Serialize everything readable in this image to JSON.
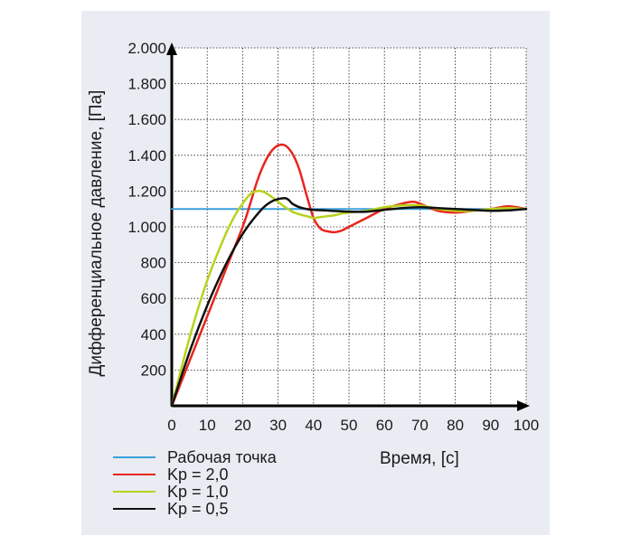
{
  "chart_data": {
    "type": "line",
    "title": "",
    "xlabel": "Время, [c]",
    "ylabel": "Дифференциальное давление, [Па]",
    "xlim": [
      0,
      100
    ],
    "ylim": [
      0,
      2000
    ],
    "x_ticks": [
      0,
      10,
      20,
      30,
      40,
      50,
      60,
      70,
      80,
      90,
      100
    ],
    "x_tick_labels": [
      "0",
      "10",
      "20",
      "30",
      "40",
      "50",
      "60",
      "70",
      "80",
      "90",
      "100"
    ],
    "y_ticks": [
      200,
      400,
      600,
      800,
      1000,
      1200,
      1400,
      1600,
      1800,
      2000
    ],
    "y_tick_labels": [
      "200",
      "400",
      "600",
      "800",
      "1.000",
      "1.200",
      "1.400",
      "1.600",
      "1.800",
      "2.000"
    ],
    "grid": true,
    "legend_position": "bottom-left",
    "series": [
      {
        "name": "Рабочая точка",
        "color": "#3aa0dc",
        "x": [
          0,
          100
        ],
        "y": [
          1100,
          1100
        ]
      },
      {
        "name": "Kp = 2,0",
        "color": "#e8261f",
        "x": [
          0,
          5,
          10,
          15,
          20,
          22,
          24,
          26,
          28,
          30,
          32,
          34,
          36,
          38,
          40,
          42,
          44,
          46,
          48,
          50,
          55,
          60,
          65,
          68,
          70,
          75,
          80,
          85,
          90,
          95,
          100
        ],
        "y": [
          0,
          250,
          500,
          750,
          1000,
          1120,
          1250,
          1350,
          1420,
          1455,
          1455,
          1410,
          1320,
          1180,
          1050,
          990,
          975,
          970,
          980,
          1000,
          1050,
          1100,
          1130,
          1140,
          1130,
          1090,
          1080,
          1090,
          1100,
          1115,
          1100
        ]
      },
      {
        "name": "Kp = 1,0",
        "color": "#b8d21c",
        "x": [
          0,
          5,
          10,
          15,
          18,
          20,
          22,
          24,
          26,
          28,
          30,
          32,
          34,
          36,
          38,
          40,
          42,
          44,
          46,
          48,
          50,
          55,
          60,
          65,
          70,
          75,
          80,
          85,
          90,
          95,
          100
        ],
        "y": [
          0,
          380,
          700,
          950,
          1070,
          1130,
          1180,
          1200,
          1195,
          1170,
          1140,
          1110,
          1085,
          1070,
          1060,
          1050,
          1055,
          1060,
          1065,
          1075,
          1080,
          1090,
          1110,
          1120,
          1120,
          1100,
          1090,
          1090,
          1100,
          1105,
          1100
        ]
      },
      {
        "name": "Kp = 0,5",
        "color": "#111111",
        "x": [
          0,
          5,
          10,
          15,
          20,
          25,
          28,
          30,
          32,
          33,
          34,
          36,
          38,
          40,
          45,
          50,
          55,
          60,
          65,
          70,
          75,
          80,
          85,
          90,
          95,
          100
        ],
        "y": [
          0,
          300,
          560,
          780,
          960,
          1090,
          1140,
          1155,
          1160,
          1150,
          1130,
          1110,
          1100,
          1095,
          1090,
          1085,
          1085,
          1095,
          1105,
          1110,
          1105,
          1100,
          1095,
          1090,
          1092,
          1100
        ]
      }
    ]
  }
}
